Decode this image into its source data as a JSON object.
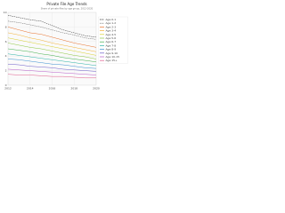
{
  "chart_data": {
    "type": "line",
    "title": "Private File Age Trends",
    "subtitle": "Share of private files by age group, 2012-2020",
    "x": [
      2012,
      2013,
      2014,
      2015,
      2016,
      2017,
      2018,
      2019,
      2020
    ],
    "xlim": [
      2012,
      2020
    ],
    "xticks": [
      2012,
      2014,
      2016,
      2018,
      2020
    ],
    "ylim": [
      0,
      10
    ],
    "yticks": [
      0,
      2,
      4,
      6,
      8,
      10
    ],
    "grid": true,
    "legend": "right",
    "series": [
      {
        "name": "Age 0-1",
        "color": "#333333",
        "dash": true,
        "values": [
          9.6,
          9.3,
          9.0,
          8.8,
          8.2,
          7.6,
          7.2,
          6.8,
          6.6
        ]
      },
      {
        "name": "Age 1-2",
        "color": "#666666",
        "dash": true,
        "values": [
          8.8,
          8.6,
          8.3,
          8.0,
          7.6,
          7.2,
          6.9,
          6.5,
          6.3
        ]
      },
      {
        "name": "Age 2-3",
        "color": "#e8702a",
        "dash": false,
        "values": [
          8.0,
          7.6,
          7.2,
          7.0,
          6.6,
          6.2,
          5.8,
          5.5,
          5.2
        ]
      },
      {
        "name": "Age 3-4",
        "color": "#f2b134",
        "dash": false,
        "values": [
          7.2,
          6.9,
          6.5,
          6.2,
          5.8,
          5.5,
          5.2,
          4.9,
          4.6
        ]
      },
      {
        "name": "Age 4-5",
        "color": "#d9d02f",
        "dash": false,
        "values": [
          6.5,
          6.2,
          5.9,
          5.6,
          5.3,
          5.0,
          4.7,
          4.4,
          4.1
        ]
      },
      {
        "name": "Age 5-6",
        "color": "#8cc63f",
        "dash": false,
        "values": [
          5.8,
          5.5,
          5.2,
          5.0,
          4.7,
          4.4,
          4.1,
          3.9,
          3.6
        ]
      },
      {
        "name": "Age 6-7",
        "color": "#3fae49",
        "dash": false,
        "values": [
          5.0,
          4.8,
          4.6,
          4.3,
          4.1,
          3.8,
          3.6,
          3.4,
          3.2
        ]
      },
      {
        "name": "Age 7-8",
        "color": "#2bb3a6",
        "dash": false,
        "values": [
          4.3,
          4.1,
          3.9,
          3.7,
          3.5,
          3.3,
          3.1,
          2.9,
          2.7
        ]
      },
      {
        "name": "Age 8-9",
        "color": "#3a8fd1",
        "dash": false,
        "values": [
          3.6,
          3.5,
          3.3,
          3.1,
          2.9,
          2.8,
          2.6,
          2.4,
          2.3
        ]
      },
      {
        "name": "Age 9-10",
        "color": "#6b5bc9",
        "dash": false,
        "values": [
          2.9,
          2.8,
          2.6,
          2.5,
          2.4,
          2.2,
          2.1,
          2.0,
          1.9
        ]
      },
      {
        "name": "Age 10-15",
        "color": "#b65bc9",
        "dash": false,
        "values": [
          2.2,
          2.1,
          2.0,
          1.9,
          1.8,
          1.7,
          1.6,
          1.5,
          1.4
        ]
      },
      {
        "name": "Age 15+",
        "color": "#e05b8c",
        "dash": false,
        "values": [
          1.5,
          1.4,
          1.4,
          1.3,
          1.2,
          1.2,
          1.1,
          1.0,
          1.0
        ]
      }
    ]
  }
}
